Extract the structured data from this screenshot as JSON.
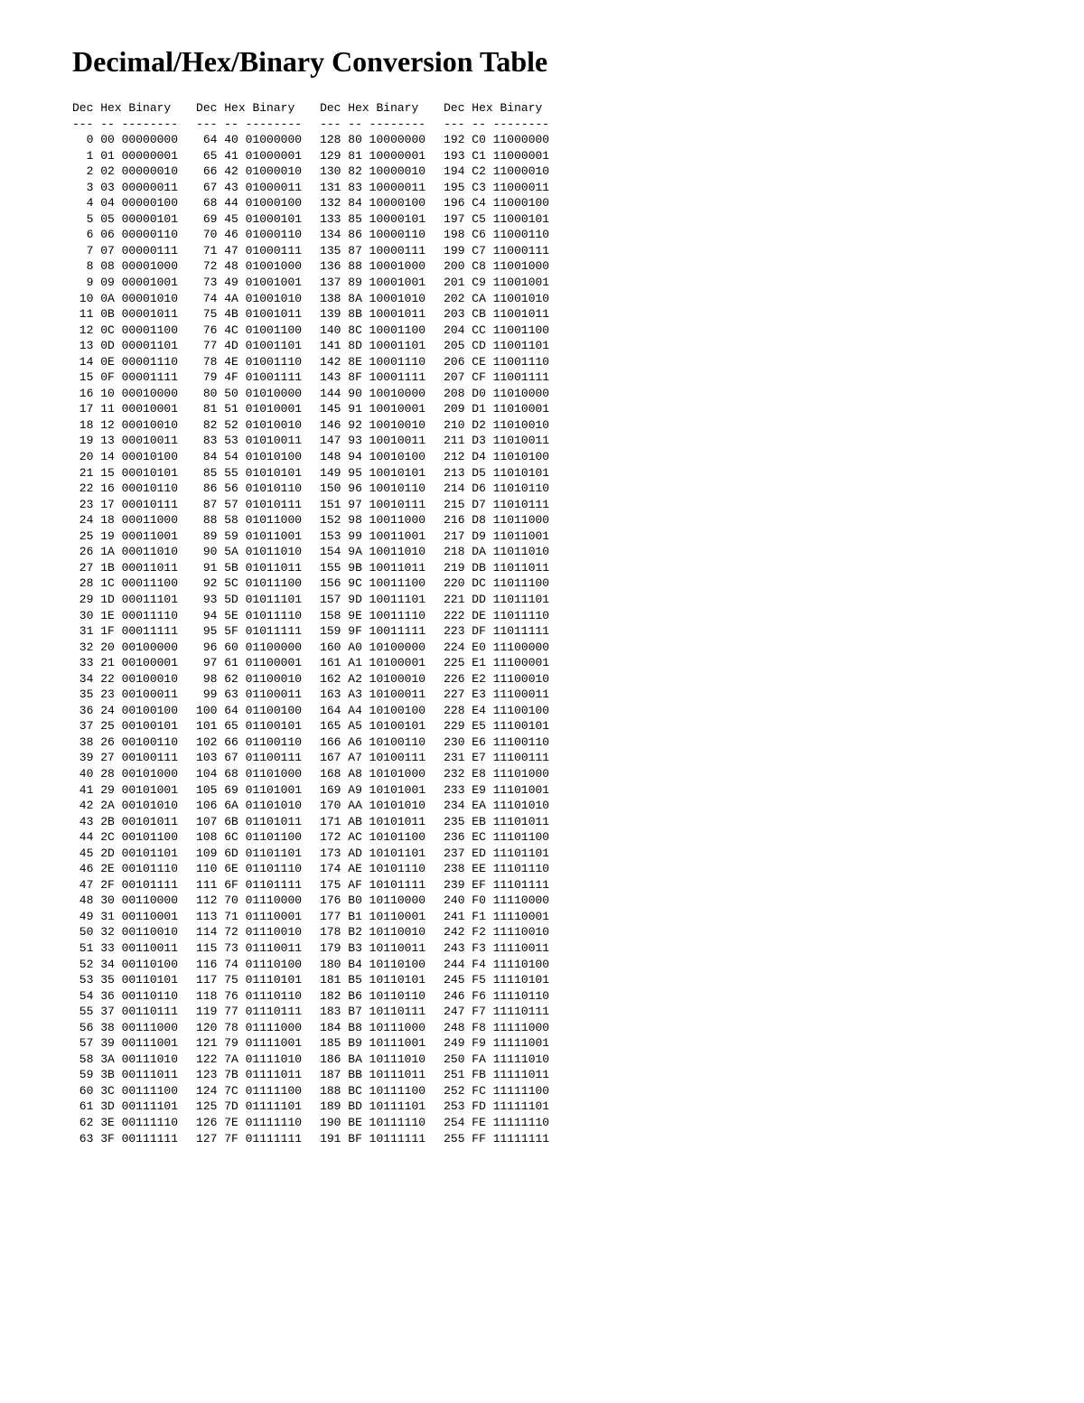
{
  "title": "Decimal/Hex/Binary Conversion Table",
  "headers": {
    "dec": "Dec",
    "hex": "Hex",
    "bin": "Binary"
  },
  "rules": {
    "dec": "---",
    "hex": "--",
    "bin": "--------"
  },
  "layout": {
    "columns": 4,
    "rows_per_column": 64,
    "font_family": "Courier New",
    "font_size_pt": 10,
    "background_color": "#ffffff",
    "text_color": "#000000"
  }
}
